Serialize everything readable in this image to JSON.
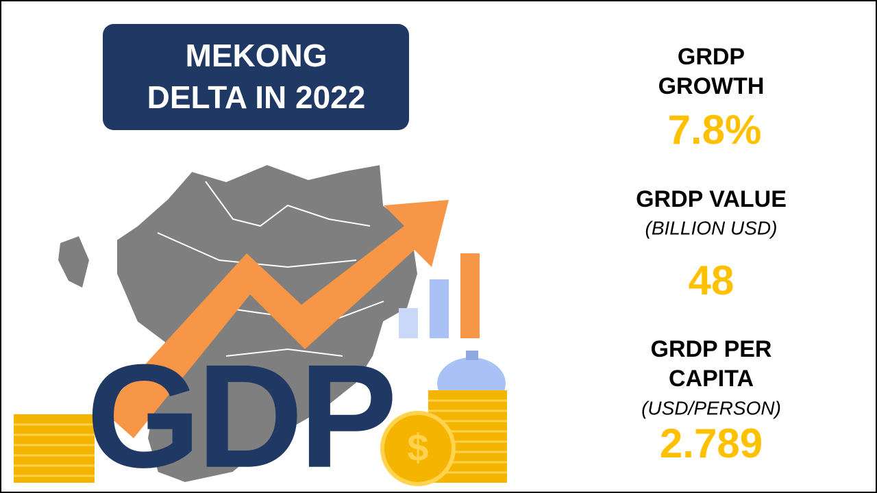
{
  "title": {
    "lines": [
      "MEKONG",
      "DELTA IN 2022"
    ]
  },
  "illustration": {
    "word": "GDP",
    "coin_symbol": "$"
  },
  "stats": [
    {
      "label_lines": [
        "GRDP",
        "GROWTH"
      ],
      "value": "7.8%"
    },
    {
      "label_lines": [
        "GRDP VALUE"
      ],
      "unit": "(BILLION USD)",
      "value": "48"
    },
    {
      "label_lines": [
        "GRDP PER",
        "CAPITA"
      ],
      "unit": "(USD/PERSON)",
      "value": "2.789"
    }
  ]
}
